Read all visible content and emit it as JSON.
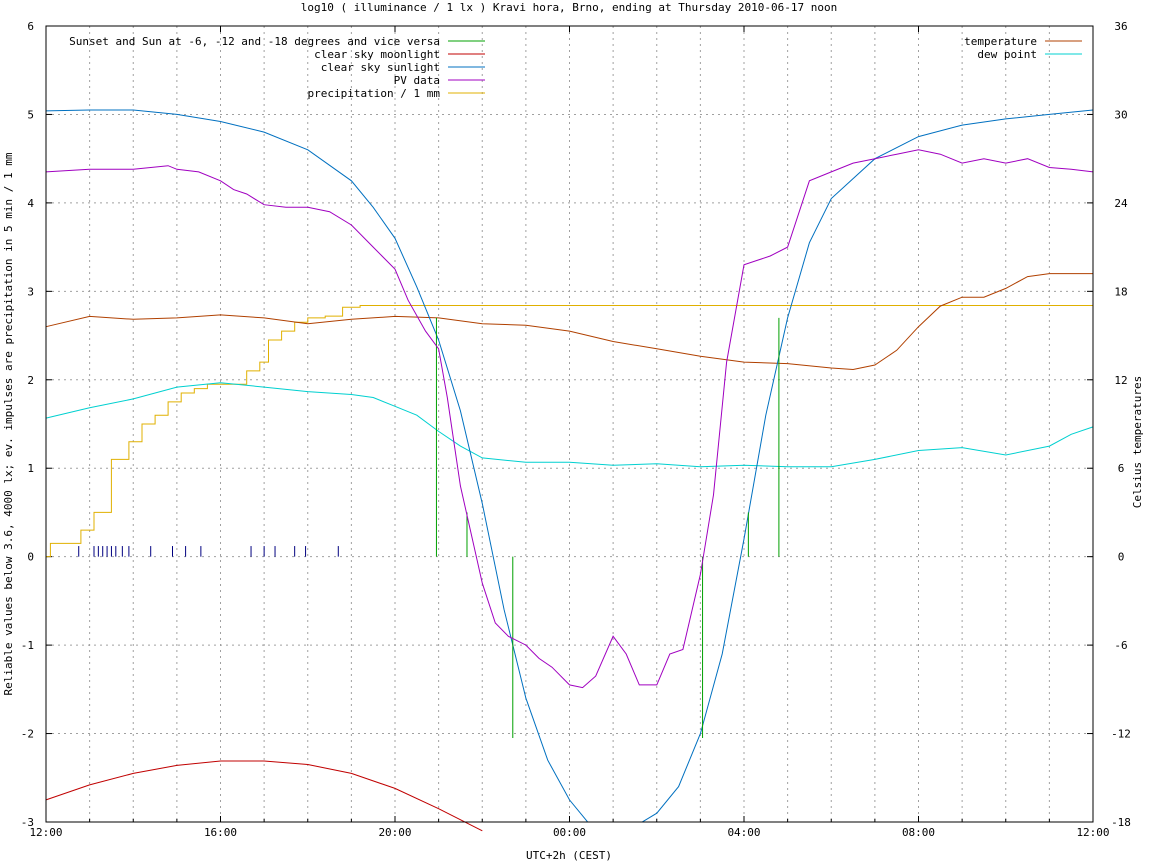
{
  "chart_data": {
    "type": "line",
    "title": "log10 ( illuminance / 1 lx ) Kravi hora, Brno, ending at Thursday 2010-06-17 noon",
    "xlabel": "UTC+2h (CEST)",
    "ylabel": "Reliable values below 3.6, 4000 lx; ev. impulses are precipitation in 5 min / 1 mm",
    "y2label": "Celsius temperatures",
    "x_unit": "hours after 12:00 (start)",
    "xlim": [
      0,
      24
    ],
    "ylim": [
      -3,
      6
    ],
    "y2lim": [
      -18,
      36
    ],
    "x_ticks": [
      {
        "v": 0,
        "label": "12:00"
      },
      {
        "v": 4,
        "label": "16:00"
      },
      {
        "v": 8,
        "label": "20:00"
      },
      {
        "v": 12,
        "label": "00:00"
      },
      {
        "v": 16,
        "label": "04:00"
      },
      {
        "v": 20,
        "label": "08:00"
      },
      {
        "v": 24,
        "label": "12:00"
      }
    ],
    "y_ticks": [
      {
        "v": -3,
        "label": "-3"
      },
      {
        "v": -2,
        "label": "-2"
      },
      {
        "v": -1,
        "label": "-1"
      },
      {
        "v": 0,
        "label": "0"
      },
      {
        "v": 1,
        "label": "1"
      },
      {
        "v": 2,
        "label": "2"
      },
      {
        "v": 3,
        "label": "3"
      },
      {
        "v": 4,
        "label": "4"
      },
      {
        "v": 5,
        "label": "5"
      },
      {
        "v": 6,
        "label": "6"
      }
    ],
    "y2_ticks": [
      {
        "v": -18,
        "label": "-18"
      },
      {
        "v": -12,
        "label": "-12"
      },
      {
        "v": -6,
        "label": "-6"
      },
      {
        "v": 0,
        "label": "0"
      },
      {
        "v": 6,
        "label": "6"
      },
      {
        "v": 12,
        "label": "12"
      },
      {
        "v": 18,
        "label": "18"
      },
      {
        "v": 24,
        "label": "24"
      },
      {
        "v": 30,
        "label": "30"
      },
      {
        "v": 36,
        "label": "36"
      }
    ],
    "grid": true,
    "legend_left": [
      {
        "name": "Sunset and Sun at -6, -12 and -18 degrees and vice versa",
        "color": "#00a000"
      },
      {
        "name": "clear sky moonlight",
        "color": "#c00000"
      },
      {
        "name": "clear sky sunlight",
        "color": "#0070c0"
      },
      {
        "name": "PV data",
        "color": "#a000c0"
      },
      {
        "name": "precipitation / 1 mm",
        "color": "#e0b000"
      }
    ],
    "legend_right": [
      {
        "name": "temperature",
        "color": "#b04000"
      },
      {
        "name": "dew point",
        "color": "#00d0d0"
      }
    ],
    "sun_markers": [
      {
        "x": 8.95,
        "y_top": 2.7
      },
      {
        "x": 9.65,
        "y_top": 0.5
      },
      {
        "x": 10.7,
        "y_top": -2.05,
        "from_zero": true
      },
      {
        "x": 15.05,
        "y_top": -2.05,
        "from_zero": true
      },
      {
        "x": 16.1,
        "y_top": 0.5
      },
      {
        "x": 16.8,
        "y_top": 2.7
      }
    ],
    "clear_sky_sunlight": {
      "x": [
        0,
        1,
        2,
        3,
        4,
        5,
        6,
        7,
        7.5,
        8,
        8.5,
        9,
        9.5,
        10,
        10.5,
        11,
        11.5,
        12,
        12.5,
        13,
        13.5,
        14,
        14.5,
        15,
        15.5,
        16,
        16.5,
        17,
        17.5,
        18,
        19,
        20,
        21,
        22,
        23,
        24
      ],
      "y": [
        5.04,
        5.05,
        5.05,
        5.0,
        4.92,
        4.8,
        4.6,
        4.25,
        3.95,
        3.6,
        3.05,
        2.45,
        1.65,
        0.6,
        -0.6,
        -1.6,
        -2.3,
        -2.75,
        -3.05,
        -3.1,
        -3.05,
        -2.9,
        -2.6,
        -2.0,
        -1.1,
        0.2,
        1.6,
        2.7,
        3.55,
        4.05,
        4.5,
        4.75,
        4.88,
        4.95,
        5.0,
        5.05
      ]
    },
    "clear_sky_moonlight": {
      "x": [
        0,
        1,
        2,
        3,
        4,
        5,
        6,
        7,
        8,
        9,
        10
      ],
      "y": [
        -2.75,
        -2.58,
        -2.45,
        -2.36,
        -2.31,
        -2.31,
        -2.35,
        -2.45,
        -2.62,
        -2.85,
        -3.1
      ]
    },
    "pv_data": {
      "x": [
        0,
        1,
        2,
        2.8,
        3,
        3.5,
        4,
        4.3,
        4.6,
        5,
        5.5,
        6,
        6.5,
        7,
        7.5,
        8,
        8.3,
        8.7,
        9,
        9.2,
        9.5,
        10,
        10.3,
        10.6,
        11,
        11.3,
        11.6,
        12,
        12.3,
        12.6,
        13,
        13.3,
        13.6,
        14,
        14.3,
        14.6,
        15,
        15.3,
        15.6,
        16,
        16.3,
        16.6,
        17,
        17.5,
        18,
        18.5,
        19,
        19.5,
        20,
        20.5,
        21,
        21.5,
        22,
        22.5,
        23,
        23.5,
        24
      ],
      "y": [
        4.35,
        4.38,
        4.38,
        4.42,
        4.38,
        4.35,
        4.25,
        4.15,
        4.1,
        3.98,
        3.95,
        3.95,
        3.9,
        3.75,
        3.5,
        3.25,
        2.9,
        2.55,
        2.35,
        1.8,
        0.8,
        -0.3,
        -0.75,
        -0.9,
        -1.0,
        -1.15,
        -1.25,
        -1.45,
        -1.48,
        -1.35,
        -0.9,
        -1.1,
        -1.45,
        -1.45,
        -1.1,
        -1.05,
        -0.2,
        0.7,
        2.2,
        3.3,
        3.35,
        3.4,
        3.5,
        4.25,
        4.35,
        4.45,
        4.5,
        4.55,
        4.6,
        4.55,
        4.45,
        4.5,
        4.45,
        4.5,
        4.4,
        4.38,
        4.35
      ]
    },
    "precipitation": {
      "x": [
        0,
        0.1,
        0.8,
        1.1,
        1.5,
        1.9,
        2.2,
        2.5,
        2.8,
        3.1,
        3.4,
        3.7,
        4.0,
        4.6,
        4.9,
        5.1,
        5.4,
        5.7,
        6.0,
        6.4,
        6.8,
        7.2,
        24
      ],
      "y": [
        0,
        0.15,
        0.3,
        0.5,
        1.1,
        1.3,
        1.5,
        1.6,
        1.75,
        1.85,
        1.9,
        1.95,
        1.95,
        2.1,
        2.2,
        2.45,
        2.55,
        2.65,
        2.7,
        2.72,
        2.82,
        2.84,
        2.84
      ]
    },
    "rain_impulses": {
      "x": [
        0.75,
        1.1,
        1.2,
        1.3,
        1.4,
        1.5,
        1.6,
        1.75,
        1.9,
        2.4,
        2.9,
        3.2,
        3.55,
        4.7,
        5.0,
        5.25,
        5.7,
        5.95,
        6.7
      ],
      "y": 0.12,
      "color": "#000080"
    },
    "temperature": {
      "x": [
        0,
        1,
        2,
        3,
        4,
        5,
        6,
        7,
        8,
        9,
        10,
        11,
        12,
        13,
        14,
        15,
        16,
        17,
        18,
        18.5,
        19,
        19.5,
        20,
        20.5,
        21,
        21.5,
        22,
        22.5,
        23,
        23.5,
        24
      ],
      "y": [
        15.6,
        16.3,
        16.1,
        16.2,
        16.4,
        16.2,
        15.8,
        16.1,
        16.3,
        16.2,
        15.8,
        15.7,
        15.3,
        14.6,
        14.1,
        13.6,
        13.2,
        13.1,
        12.8,
        12.7,
        13.0,
        14.0,
        15.6,
        17.0,
        17.6,
        17.6,
        18.2,
        19.0,
        19.2,
        19.2,
        19.2
      ]
    },
    "dew_point": {
      "x": [
        0,
        1,
        2,
        3,
        4,
        5,
        6,
        7,
        7.5,
        8,
        8.5,
        9,
        9.5,
        10,
        11,
        12,
        13,
        14,
        15,
        16,
        17,
        18,
        19,
        20,
        21,
        22,
        23,
        23.5,
        24
      ],
      "y": [
        9.4,
        10.1,
        10.7,
        11.5,
        11.8,
        11.5,
        11.2,
        11.0,
        10.8,
        10.2,
        9.6,
        8.5,
        7.5,
        6.7,
        6.4,
        6.4,
        6.2,
        6.3,
        6.1,
        6.2,
        6.1,
        6.1,
        6.6,
        7.2,
        7.4,
        6.9,
        7.5,
        8.3,
        8.8
      ]
    }
  }
}
